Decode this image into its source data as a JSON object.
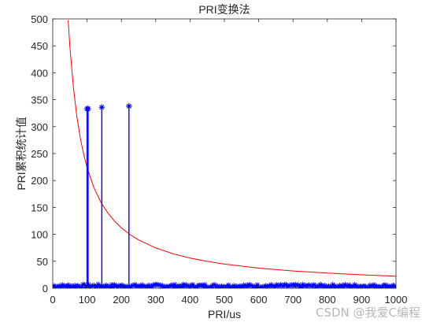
{
  "chart_data": {
    "type": "line",
    "title": "PRI变换法",
    "xlabel": "PRI/us",
    "ylabel": "PRI累积统计值",
    "xlim": [
      0,
      1000
    ],
    "ylim": [
      0,
      500
    ],
    "xticks": [
      0,
      100,
      200,
      300,
      400,
      500,
      600,
      700,
      800,
      900,
      1000
    ],
    "yticks": [
      0,
      50,
      100,
      150,
      200,
      250,
      300,
      350,
      400,
      450,
      500
    ],
    "grid": false,
    "series": [
      {
        "kind": "threshold-curve",
        "color": "#ff0000",
        "formula": "y = 22400 / x",
        "x": [
          45,
          50,
          60,
          70,
          80,
          90,
          100,
          120,
          140,
          160,
          180,
          200,
          225,
          250,
          300,
          350,
          400,
          450,
          500,
          600,
          700,
          800,
          900,
          1000
        ],
        "y": [
          497.8,
          448,
          373.3,
          320,
          280,
          248.9,
          224,
          186.7,
          160,
          140,
          124.4,
          112,
          99.6,
          89.6,
          74.7,
          64,
          56,
          49.8,
          44.8,
          37.3,
          32,
          28,
          24.9,
          22.4
        ]
      },
      {
        "kind": "spectrum",
        "color": "#0000ff",
        "marker": "*",
        "noise_level_max": 7,
        "peaks": [
          {
            "x": 100,
            "y": 333
          },
          {
            "x": 103,
            "y": 333
          },
          {
            "x": 143,
            "y": 336
          },
          {
            "x": 222,
            "y": 338
          }
        ]
      }
    ]
  },
  "watermark": "CSDN @我爱C编程"
}
